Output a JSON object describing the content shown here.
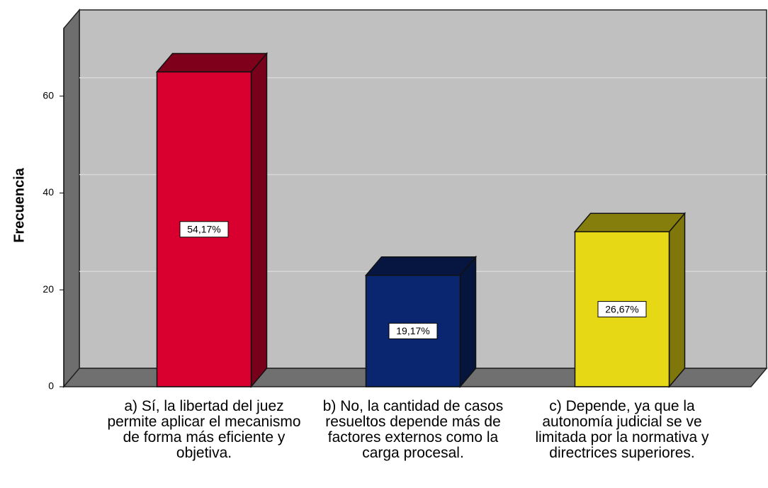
{
  "chart_data": {
    "type": "bar3d",
    "y_label": "Frecuencia",
    "categories": [
      "a) Sí, la libertad del juez permite aplicar el mecanismo de forma más eficiente y objetiva.",
      "b) No, la cantidad de casos resueltos depende más de factores externos como la carga procesal.",
      "c) Depende, ya que la autonomía judicial se ve limitada por la normativa y directrices superiores."
    ],
    "values": [
      65,
      23,
      32
    ],
    "colors": [
      "#d9002f",
      "#0a2670",
      "#e6d814"
    ],
    "percentages": [
      54.17,
      19.17,
      26.67
    ],
    "percentage_labels": [
      "54,17%",
      "19,17%",
      "26,67%"
    ],
    "ylim": [
      0,
      74
    ],
    "yticks": [
      0,
      20,
      40,
      60
    ],
    "grid": true
  }
}
